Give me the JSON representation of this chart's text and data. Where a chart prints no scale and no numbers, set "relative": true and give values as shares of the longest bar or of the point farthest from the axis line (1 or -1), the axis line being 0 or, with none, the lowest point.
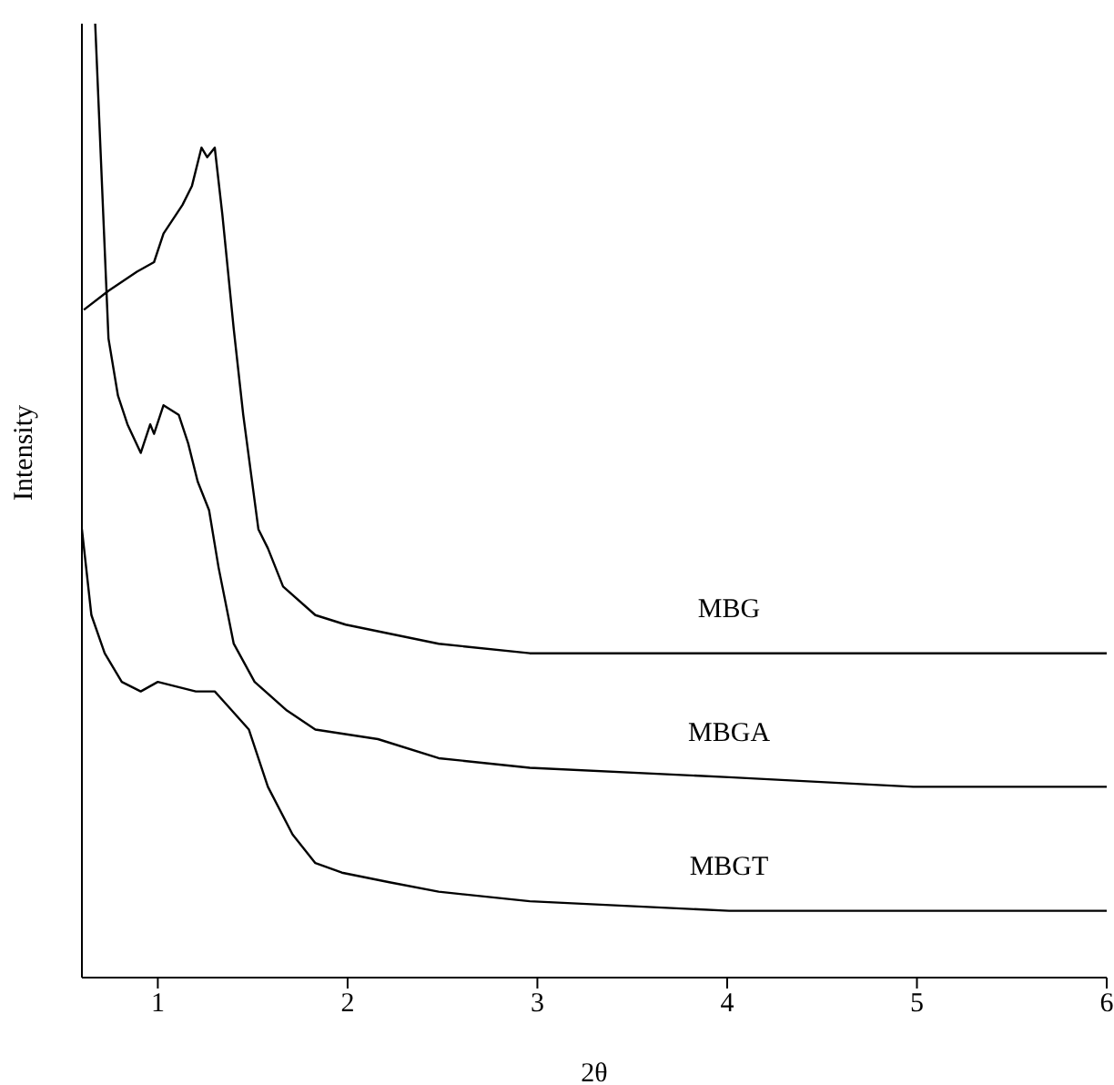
{
  "chart_data": {
    "type": "line",
    "xlabel": "2θ",
    "ylabel": "Intensity",
    "relative": true,
    "tick_labels": "x",
    "xlim": [
      0.6,
      6
    ],
    "xticks": [
      1,
      2,
      3,
      4,
      5,
      6
    ],
    "marker": "none",
    "line_style": "solid",
    "legend": false,
    "grid": false,
    "series": [
      {
        "name": "MBG",
        "color": "#000000",
        "x": [
          0.61,
          0.74,
          0.89,
          0.98,
          1.03,
          1.13,
          1.18,
          1.23,
          1.26,
          1.3,
          1.34,
          1.4,
          1.45,
          1.49,
          1.53,
          1.58,
          1.66,
          1.83,
          1.99,
          2.48,
          2.96,
          4.01,
          4.98,
          6
        ],
        "values": [
          0.7,
          0.72,
          0.74,
          0.75,
          0.78,
          0.81,
          0.83,
          0.87,
          0.86,
          0.87,
          0.8,
          0.68,
          0.59,
          0.53,
          0.47,
          0.45,
          0.41,
          0.38,
          0.37,
          0.35,
          0.34,
          0.34,
          0.34,
          0.34
        ]
      },
      {
        "name": "MBGA",
        "color": "#000000",
        "x": [
          0.67,
          0.74,
          0.79,
          0.84,
          0.91,
          0.96,
          0.98,
          1.03,
          1.11,
          1.16,
          1.21,
          1.27,
          1.32,
          1.4,
          1.51,
          1.68,
          1.83,
          2.16,
          2.48,
          2.96,
          4.01,
          4.98,
          6
        ],
        "values": [
          1,
          0.67,
          0.61,
          0.58,
          0.55,
          0.58,
          0.57,
          0.6,
          0.59,
          0.56,
          0.52,
          0.49,
          0.43,
          0.35,
          0.31,
          0.28,
          0.26,
          0.25,
          0.23,
          0.22,
          0.21,
          0.2,
          0.2
        ]
      },
      {
        "name": "MBGT",
        "color": "#000000",
        "x": [
          0.6,
          0.65,
          0.72,
          0.81,
          0.91,
          1,
          1.2,
          1.3,
          1.39,
          1.48,
          1.58,
          1.71,
          1.83,
          1.97,
          2.22,
          2.48,
          2.96,
          4.01,
          4.98,
          6
        ],
        "values": [
          0.47,
          0.38,
          0.34,
          0.31,
          0.3,
          0.31,
          0.3,
          0.3,
          0.28,
          0.26,
          0.2,
          0.15,
          0.12,
          0.11,
          0.1,
          0.09,
          0.08,
          0.07,
          0.07,
          0.07
        ]
      }
    ]
  }
}
